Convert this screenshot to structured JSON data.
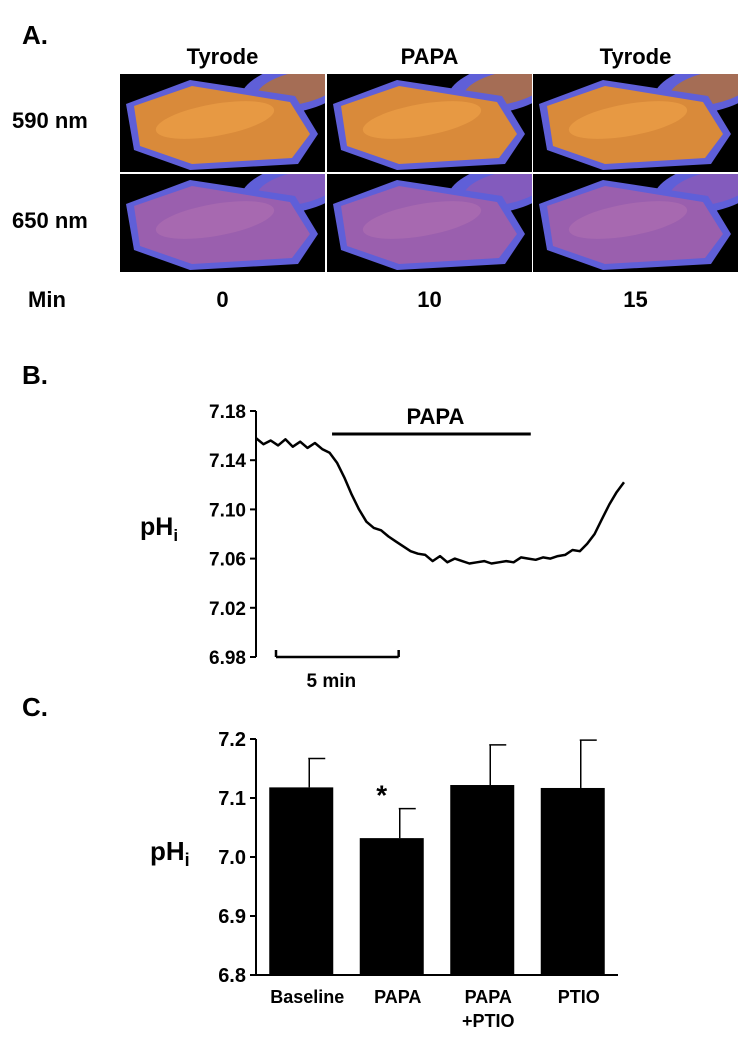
{
  "panel_a": {
    "letter": "A.",
    "columns": [
      "Tyrode",
      "PAPA",
      "Tyrode"
    ],
    "rows": [
      "590 nm",
      "650 nm"
    ],
    "time_label": "Min",
    "times": [
      "0",
      "10",
      "15"
    ],
    "colors": {
      "cell_590": "#d98a3a",
      "cell_650": "#9a5fae",
      "halo": "#5f5fd8",
      "background": "#000000"
    }
  },
  "panel_b": {
    "letter": "B.",
    "ylabel_main": "pH",
    "ylabel_sub": "i",
    "bar_label": "PAPA",
    "scale_label": "5 min"
  },
  "panel_c": {
    "letter": "C.",
    "ylabel_main": "pH",
    "ylabel_sub": "i",
    "significance_marker": "*"
  },
  "chart_data": [
    {
      "type": "line",
      "ylabel": "pHi",
      "ylim": [
        6.98,
        7.18
      ],
      "yticks": [
        6.98,
        7.02,
        7.06,
        7.1,
        7.14,
        7.18
      ],
      "x_unit": "min",
      "xlim": [
        0,
        15
      ],
      "scale_bar_min": 5,
      "papa_bar_min": [
        3.1,
        11.2
      ],
      "series": [
        {
          "x": [
            0,
            0.3,
            0.6,
            0.9,
            1.2,
            1.5,
            1.8,
            2.1,
            2.4,
            2.7,
            3.0,
            3.3,
            3.6,
            3.9,
            4.2,
            4.5,
            4.8,
            5.1,
            5.4,
            5.7,
            6.0,
            6.3,
            6.6,
            6.9,
            7.2,
            7.5,
            7.8,
            8.1,
            8.4,
            8.7,
            9.0,
            9.3,
            9.6,
            9.9,
            10.2,
            10.5,
            10.8,
            11.1,
            11.4,
            11.7,
            12.0,
            12.3,
            12.6,
            12.9,
            13.2,
            13.5,
            13.8,
            14.1,
            14.4,
            14.7,
            15.0
          ],
          "y": [
            7.158,
            7.153,
            7.156,
            7.152,
            7.157,
            7.151,
            7.155,
            7.15,
            7.154,
            7.149,
            7.146,
            7.138,
            7.126,
            7.112,
            7.1,
            7.09,
            7.085,
            7.083,
            7.078,
            7.074,
            7.07,
            7.066,
            7.064,
            7.063,
            7.058,
            7.062,
            7.057,
            7.06,
            7.058,
            7.056,
            7.057,
            7.058,
            7.056,
            7.057,
            7.058,
            7.057,
            7.061,
            7.06,
            7.059,
            7.061,
            7.06,
            7.062,
            7.063,
            7.067,
            7.066,
            7.072,
            7.08,
            7.092,
            7.104,
            7.114,
            7.122
          ]
        }
      ]
    },
    {
      "type": "bar",
      "categories": [
        "Baseline",
        "PAPA",
        "PAPA\n+PTIO",
        "PTIO"
      ],
      "values": [
        7.118,
        7.032,
        7.122,
        7.117
      ],
      "errors": [
        0.049,
        0.05,
        0.068,
        0.081
      ],
      "significant": [
        false,
        true,
        false,
        false
      ],
      "ylabel": "pHi",
      "ylim": [
        6.8,
        7.2
      ],
      "yticks": [
        6.8,
        6.9,
        7.0,
        7.1,
        7.2
      ]
    }
  ]
}
